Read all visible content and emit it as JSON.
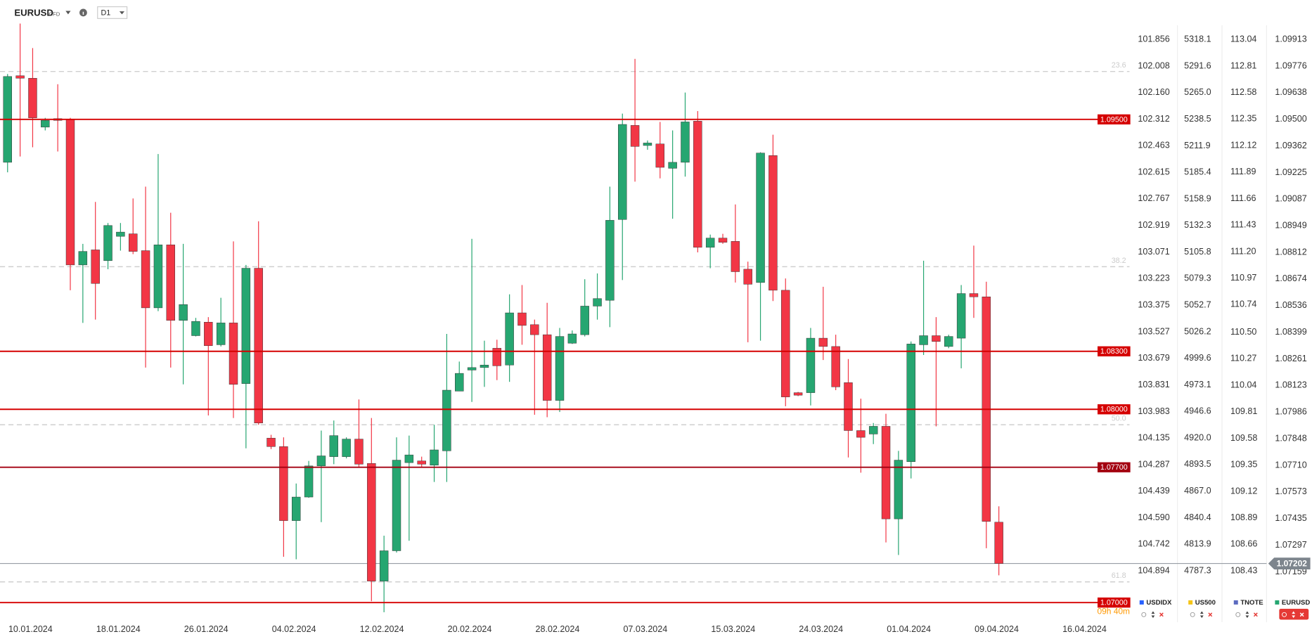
{
  "chart_data": {
    "type": "candlestick",
    "symbol": "EURUSD",
    "instrument": "CFD",
    "interval": "D1",
    "up_color": "#26a671",
    "down_color": "#f23645",
    "ylim": [
      1.06942,
      1.09996
    ],
    "xticks": [
      {
        "value": 0,
        "label": "10.01.2024"
      },
      {
        "value": 7,
        "label": "18.01.2024"
      },
      {
        "value": 14,
        "label": "26.01.2024"
      },
      {
        "value": 21,
        "label": "04.02.2024"
      },
      {
        "value": 28,
        "label": "12.02.2024"
      },
      {
        "value": 35,
        "label": "20.02.2024"
      },
      {
        "value": 42,
        "label": "28.02.2024"
      },
      {
        "value": 49,
        "label": "07.03.2024"
      },
      {
        "value": 56,
        "label": "15.03.2024"
      },
      {
        "value": 63,
        "label": "24.03.2024"
      },
      {
        "value": 70,
        "label": "01.04.2024"
      },
      {
        "value": 77,
        "label": "09.04.2024"
      },
      {
        "value": 84,
        "label": "16.04.2024"
      }
    ],
    "open": [
      1.09278,
      1.09726,
      1.09713,
      1.0946,
      1.09504,
      1.095,
      1.08747,
      1.08825,
      1.08769,
      1.08895,
      1.08908,
      1.08821,
      1.08525,
      1.08851,
      1.0846,
      1.08381,
      1.08451,
      1.08334,
      1.08447,
      1.08133,
      1.0873,
      1.07851,
      1.07807,
      1.07424,
      1.07546,
      1.07707,
      1.07755,
      1.07755,
      1.07846,
      1.0772,
      1.07111,
      1.07268,
      1.07724,
      1.07733,
      1.07711,
      1.07785,
      1.08094,
      1.08203,
      1.08216,
      1.08316,
      1.08229,
      1.08499,
      1.08438,
      1.08386,
      1.08046,
      1.08342,
      1.08386,
      1.08534,
      1.08564,
      1.08982,
      1.09469,
      1.09365,
      1.09373,
      1.09247,
      1.09278,
      1.09491,
      1.08838,
      1.08886,
      1.08869,
      1.08725,
      1.08656,
      1.09313,
      1.08616,
      1.08086,
      1.08086,
      1.08368,
      1.08325,
      1.08138,
      1.0789,
      1.07872,
      1.07912,
      1.07433,
      1.07729,
      1.08334,
      1.08381,
      1.08325,
      1.08368,
      1.08599,
      1.08582,
      1.07416
    ],
    "high": [
      1.09735,
      1.09996,
      1.09869,
      1.09508,
      1.09682,
      1.09508,
      1.08856,
      1.09073,
      1.08964,
      1.08964,
      1.09091,
      1.09152,
      1.09321,
      1.09017,
      1.08856,
      1.08473,
      1.08477,
      1.08577,
      1.08869,
      1.08747,
      1.08973,
      1.07868,
      1.07855,
      1.07616,
      1.07733,
      1.0789,
      1.07942,
      1.07855,
      1.08051,
      1.07955,
      1.07346,
      1.07855,
      1.07864,
      1.07755,
      1.0792,
      1.0839,
      1.08247,
      1.08882,
      1.08355,
      1.0836,
      1.08595,
      1.08643,
      1.08464,
      1.08551,
      1.08421,
      1.08408,
      1.08673,
      1.08703,
      1.09152,
      1.0953,
      1.09813,
      1.09391,
      1.09487,
      1.09443,
      1.09639,
      1.09543,
      1.08904,
      1.08908,
      1.0906,
      1.08764,
      1.0933,
      1.09421,
      1.08677,
      1.0809,
      1.08421,
      1.08634,
      1.08386,
      1.0826,
      1.08055,
      1.07929,
      1.07977,
      1.07785,
      1.08351,
      1.08769,
      1.08477,
      1.08386,
      1.08643,
      1.08847,
      1.0866,
      1.07498
    ],
    "low": [
      1.09226,
      1.09308,
      1.09356,
      1.09443,
      1.09334,
      1.08616,
      1.08447,
      1.08464,
      1.08725,
      1.08821,
      1.08803,
      1.08216,
      1.08508,
      1.08216,
      1.08129,
      1.08377,
      1.07968,
      1.08325,
      1.07955,
      1.07798,
      1.0792,
      1.07794,
      1.07237,
      1.07224,
      1.07542,
      1.07416,
      1.07716,
      1.07746,
      1.07703,
      1.07007,
      1.0695,
      1.07259,
      1.0732,
      1.07698,
      1.07624,
      1.07624,
      1.08094,
      1.08038,
      1.08116,
      1.08151,
      1.08142,
      1.08334,
      1.07972,
      1.07959,
      1.07986,
      1.08338,
      1.08377,
      1.08464,
      1.08425,
      1.08669,
      1.09178,
      1.09343,
      1.09195,
      1.08986,
      1.09204,
      1.08812,
      1.0873,
      1.08856,
      1.08656,
      1.08347,
      1.08355,
      1.0856,
      1.08016,
      1.08068,
      1.0802,
      1.08255,
      1.08099,
      1.07751,
      1.07672,
      1.0782,
      1.07311,
      1.07246,
      1.07642,
      1.08281,
      1.07912,
      1.08316,
      1.08212,
      1.08473,
      1.07281,
      1.07141
    ],
    "close": [
      1.09722,
      1.09713,
      1.09508,
      1.09495,
      1.09495,
      1.08747,
      1.08817,
      1.08651,
      1.08951,
      1.08917,
      1.08817,
      1.08525,
      1.08851,
      1.0846,
      1.08542,
      1.08455,
      1.08329,
      1.08447,
      1.08129,
      1.0873,
      1.07929,
      1.07807,
      1.07424,
      1.07546,
      1.07707,
      1.07759,
      1.07864,
      1.07846,
      1.07716,
      1.07111,
      1.07268,
      1.07737,
      1.07764,
      1.07716,
      1.0779,
      1.08099,
      1.08186,
      1.08216,
      1.08229,
      1.08225,
      1.08499,
      1.08434,
      1.08386,
      1.08046,
      1.08377,
      1.0839,
      1.08534,
      1.08573,
      1.08978,
      1.09474,
      1.0936,
      1.09378,
      1.09252,
      1.09278,
      1.09487,
      1.08838,
      1.08886,
      1.08864,
      1.08712,
      1.08647,
      1.09326,
      1.08616,
      1.08064,
      1.08073,
      1.08368,
      1.08325,
      1.08116,
      1.0789,
      1.07855,
      1.07912,
      1.07433,
      1.07737,
      1.08338,
      1.08381,
      1.08351,
      1.08377,
      1.08599,
      1.08582,
      1.0742,
      1.07202
    ],
    "levels": [
      {
        "value": 1.095,
        "label": "1.09500",
        "color": "#d50000"
      },
      {
        "value": 1.083,
        "label": "1.08300",
        "color": "#d50000"
      },
      {
        "value": 1.08,
        "label": "1.08000",
        "color": "#d50000"
      },
      {
        "value": 1.077,
        "label": "1.07700",
        "color": "#a30010"
      },
      {
        "value": 1.07,
        "label": "1.07000",
        "color": "#d50000"
      }
    ],
    "fib_levels": [
      {
        "label": "23.6",
        "price": 1.09748
      },
      {
        "label": "38.2",
        "price": 1.08738
      },
      {
        "label": "50.0",
        "price": 1.0792
      },
      {
        "label": "61.8",
        "price": 1.07107
      }
    ],
    "last_price": 1.07202,
    "countdown": "09h 40m",
    "price_scales": [
      {
        "name": "USDIDX",
        "color": "#2962ff",
        "ylim": [
          105.139,
          101.765
        ],
        "yticks": [
          101.856,
          102.008,
          {
            "value": 102.16,
            "label": "102.160"
          },
          102.312,
          102.463,
          102.615,
          102.767,
          102.919,
          103.071,
          103.223,
          103.375,
          103.527,
          103.679,
          103.831,
          103.983,
          104.135,
          104.287,
          104.439,
          {
            "value": 104.59,
            "label": "104.590"
          },
          104.742,
          104.894
        ]
      },
      {
        "name": "US500",
        "color": "#f5c518",
        "ylim": [
          4744.5,
          5334.1
        ],
        "yticks": [
          5318.1,
          5291.6,
          {
            "value": 5265,
            "label": "5265.0"
          },
          5238.5,
          5211.9,
          5185.4,
          5158.9,
          5132.3,
          5105.8,
          5079.3,
          5052.7,
          5026.2,
          4999.6,
          4973.1,
          4946.6,
          {
            "value": 4920,
            "label": "4920.0"
          },
          4893.5,
          {
            "value": 4867,
            "label": "4867.0"
          },
          4840.4,
          4813.9,
          4787.3
        ]
      },
      {
        "name": "TNOTE",
        "color": "#5c6bc0",
        "ylim": [
          108.058,
          113.179
        ],
        "yticks": [
          113.04,
          112.81,
          112.58,
          112.35,
          112.12,
          111.89,
          111.66,
          111.43,
          {
            "value": 111.2,
            "label": "111.20"
          },
          110.97,
          110.74,
          {
            "value": 110.5,
            "label": "110.50"
          },
          110.27,
          110.04,
          109.81,
          109.58,
          109.35,
          109.12,
          108.89,
          108.66,
          108.43
        ]
      },
      {
        "name": "EURUSD",
        "color": "#26a671",
        "ylim": [
          1.06942,
          1.09996
        ],
        "yticks": [
          1.09913,
          1.09776,
          1.09638,
          {
            "value": 1.095,
            "label": "1.09500"
          },
          1.09362,
          1.09225,
          1.09087,
          1.08949,
          1.08812,
          1.08674,
          1.08536,
          1.08399,
          1.08261,
          1.08123,
          1.07986,
          1.07848,
          {
            "value": 1.0771,
            "label": "1.07710"
          },
          1.07573,
          1.07435,
          1.07297,
          1.07159
        ]
      }
    ]
  }
}
